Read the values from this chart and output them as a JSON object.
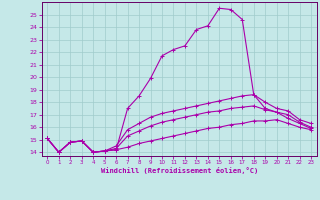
{
  "xlabel": "Windchill (Refroidissement éolien,°C)",
  "background_color": "#c5e8e8",
  "grid_color": "#a0cccc",
  "line_color": "#aa00aa",
  "spine_color": "#660066",
  "xlim": [
    -0.5,
    23.5
  ],
  "ylim": [
    13.7,
    26.0
  ],
  "yticks": [
    14,
    15,
    16,
    17,
    18,
    19,
    20,
    21,
    22,
    23,
    24,
    25
  ],
  "xticks": [
    0,
    1,
    2,
    3,
    4,
    5,
    6,
    7,
    8,
    9,
    10,
    11,
    12,
    13,
    14,
    15,
    16,
    17,
    18,
    19,
    20,
    21,
    22,
    23
  ],
  "curve_main": {
    "x": [
      0,
      1,
      2,
      3,
      4,
      5,
      6,
      7,
      8,
      9,
      10,
      11,
      12,
      13,
      14,
      15,
      16,
      17,
      18,
      19,
      20,
      21,
      22,
      23
    ],
    "y": [
      15.1,
      14.0,
      14.8,
      14.9,
      14.0,
      14.1,
      14.2,
      17.5,
      18.5,
      19.9,
      21.7,
      22.2,
      22.5,
      23.8,
      24.1,
      25.5,
      25.4,
      24.6,
      18.6,
      17.5,
      17.2,
      16.7,
      16.3,
      15.9
    ]
  },
  "curve_mid_high": {
    "x": [
      0,
      1,
      2,
      3,
      4,
      5,
      6,
      7,
      8,
      9,
      10,
      11,
      12,
      13,
      14,
      15,
      16,
      17,
      18,
      19,
      20,
      21,
      22,
      23
    ],
    "y": [
      15.1,
      14.0,
      14.8,
      14.9,
      14.0,
      14.1,
      14.5,
      15.8,
      16.3,
      16.8,
      17.1,
      17.3,
      17.5,
      17.7,
      17.9,
      18.1,
      18.3,
      18.5,
      18.6,
      18.0,
      17.5,
      17.3,
      16.6,
      16.3
    ]
  },
  "curve_mid": {
    "x": [
      0,
      1,
      2,
      3,
      4,
      5,
      6,
      7,
      8,
      9,
      10,
      11,
      12,
      13,
      14,
      15,
      16,
      17,
      18,
      19,
      20,
      21,
      22,
      23
    ],
    "y": [
      15.1,
      14.0,
      14.8,
      14.9,
      14.0,
      14.1,
      14.3,
      15.3,
      15.7,
      16.1,
      16.4,
      16.6,
      16.8,
      17.0,
      17.2,
      17.3,
      17.5,
      17.6,
      17.7,
      17.4,
      17.2,
      17.0,
      16.4,
      16.0
    ]
  },
  "curve_flat": {
    "x": [
      0,
      1,
      2,
      3,
      4,
      5,
      6,
      7,
      8,
      9,
      10,
      11,
      12,
      13,
      14,
      15,
      16,
      17,
      18,
      19,
      20,
      21,
      22,
      23
    ],
    "y": [
      15.1,
      14.0,
      14.8,
      14.9,
      14.0,
      14.1,
      14.2,
      14.4,
      14.7,
      14.9,
      15.1,
      15.3,
      15.5,
      15.7,
      15.9,
      16.0,
      16.2,
      16.3,
      16.5,
      16.5,
      16.6,
      16.3,
      16.0,
      15.8
    ]
  }
}
